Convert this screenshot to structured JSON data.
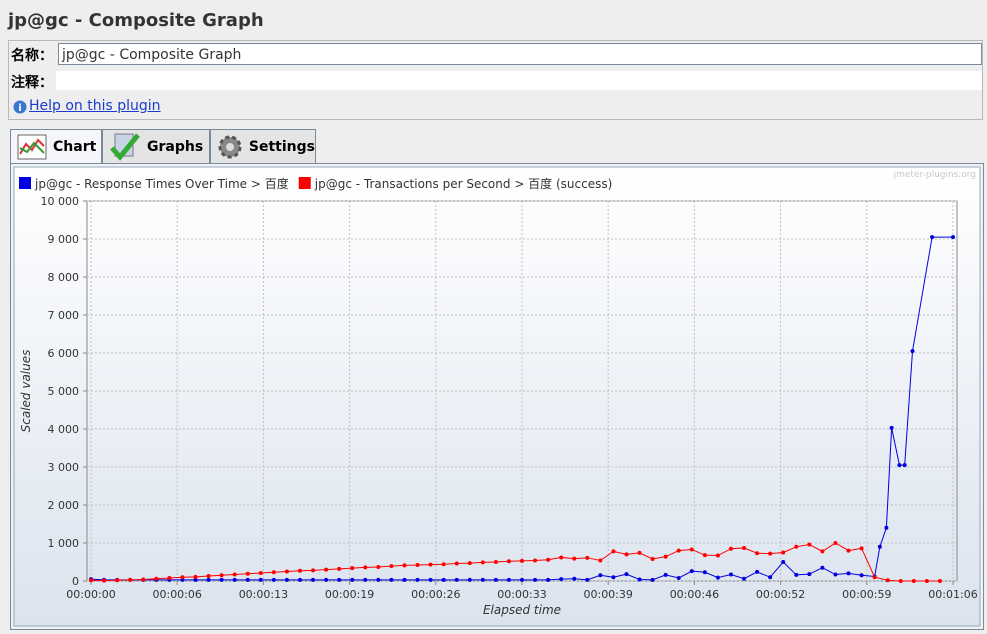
{
  "header": {
    "title": "jp@gc - Composite Graph"
  },
  "form": {
    "name_label": "名称：",
    "name_value": "jp@gc - Composite Graph",
    "comment_label": "注释：",
    "help_link": "Help on this plugin"
  },
  "tabs": [
    "Chart",
    "Graphs",
    "Settings"
  ],
  "chart_data": {
    "type": "line",
    "watermark": "jmeter-plugins.org",
    "xlabel": "Elapsed time",
    "ylabel": "Scaled values",
    "grid": true,
    "xlim": [
      0,
      66
    ],
    "xticks": [
      {
        "value": 0,
        "label": "00:00:00"
      },
      {
        "value": 6.6,
        "label": "00:00:06"
      },
      {
        "value": 13.2,
        "label": "00:00:13"
      },
      {
        "value": 19.8,
        "label": "00:00:19"
      },
      {
        "value": 26.4,
        "label": "00:00:26"
      },
      {
        "value": 33,
        "label": "00:00:33"
      },
      {
        "value": 39.6,
        "label": "00:00:39"
      },
      {
        "value": 46.2,
        "label": "00:00:46"
      },
      {
        "value": 52.8,
        "label": "00:00:52"
      },
      {
        "value": 59.4,
        "label": "00:00:59"
      },
      {
        "value": 66,
        "label": "00:01:06"
      }
    ],
    "ylim": [
      0,
      10000
    ],
    "yticks": [
      0,
      {
        "value": 1000,
        "label": "1 000"
      },
      {
        "value": 2000,
        "label": "2 000"
      },
      {
        "value": 3000,
        "label": "3 000"
      },
      {
        "value": 4000,
        "label": "4 000"
      },
      {
        "value": 5000,
        "label": "5 000"
      },
      {
        "value": 6000,
        "label": "6 000"
      },
      {
        "value": 7000,
        "label": "7 000"
      },
      {
        "value": 8000,
        "label": "8 000"
      },
      {
        "value": 9000,
        "label": "9 000"
      },
      {
        "value": 10000,
        "label": "10 000"
      }
    ],
    "series": [
      {
        "name": "jp@gc - Response Times Over Time > 百度",
        "color": "#0000e0",
        "x": [
          0,
          1,
          2,
          3,
          4,
          5,
          6,
          7,
          8,
          9,
          10,
          11,
          12,
          13,
          14,
          15,
          16,
          17,
          18,
          19,
          20,
          21,
          22,
          23,
          24,
          25,
          26,
          27,
          28,
          29,
          30,
          31,
          32,
          33,
          34,
          35,
          36,
          37,
          38,
          39,
          40,
          41,
          42,
          43,
          44,
          45,
          46,
          47,
          48,
          49,
          50,
          51,
          52,
          53,
          54,
          55,
          56,
          57,
          58,
          59,
          60,
          60.4,
          60.9,
          61.3,
          61.9,
          62.3,
          62.9,
          64.4,
          66
        ],
        "values": [
          50,
          30,
          30,
          30,
          30,
          30,
          30,
          30,
          30,
          30,
          30,
          30,
          30,
          30,
          30,
          30,
          30,
          30,
          30,
          30,
          30,
          30,
          30,
          30,
          30,
          30,
          30,
          30,
          30,
          30,
          30,
          30,
          30,
          30,
          30,
          30,
          50,
          60,
          30,
          150,
          100,
          180,
          40,
          30,
          160,
          80,
          260,
          230,
          90,
          170,
          60,
          240,
          100,
          500,
          160,
          180,
          350,
          170,
          200,
          150,
          120,
          900,
          1400,
          4030,
          3050,
          3050,
          6050,
          9050,
          9050
        ]
      },
      {
        "name": "jp@gc - Transactions per Second > 百度 (success)",
        "color": "#ff0000",
        "x": [
          0,
          1,
          2,
          3,
          4,
          5,
          6,
          7,
          8,
          9,
          10,
          11,
          12,
          13,
          14,
          15,
          16,
          17,
          18,
          19,
          20,
          21,
          22,
          23,
          24,
          25,
          26,
          27,
          28,
          29,
          30,
          31,
          32,
          33,
          34,
          35,
          36,
          37,
          38,
          39,
          40,
          41,
          42,
          43,
          44,
          45,
          46,
          47,
          48,
          49,
          50,
          51,
          52,
          53,
          54,
          55,
          56,
          57,
          58,
          59,
          60,
          61,
          62,
          63,
          64,
          65
        ],
        "values": [
          20,
          10,
          20,
          30,
          40,
          60,
          80,
          100,
          110,
          130,
          150,
          170,
          190,
          210,
          230,
          250,
          270,
          280,
          300,
          320,
          340,
          360,
          370,
          390,
          410,
          420,
          430,
          440,
          460,
          470,
          490,
          500,
          520,
          530,
          540,
          560,
          620,
          590,
          610,
          540,
          780,
          700,
          740,
          580,
          640,
          800,
          830,
          680,
          670,
          850,
          870,
          730,
          720,
          750,
          900,
          960,
          780,
          1000,
          800,
          860,
          100,
          20,
          0,
          0,
          0,
          0
        ]
      }
    ]
  }
}
